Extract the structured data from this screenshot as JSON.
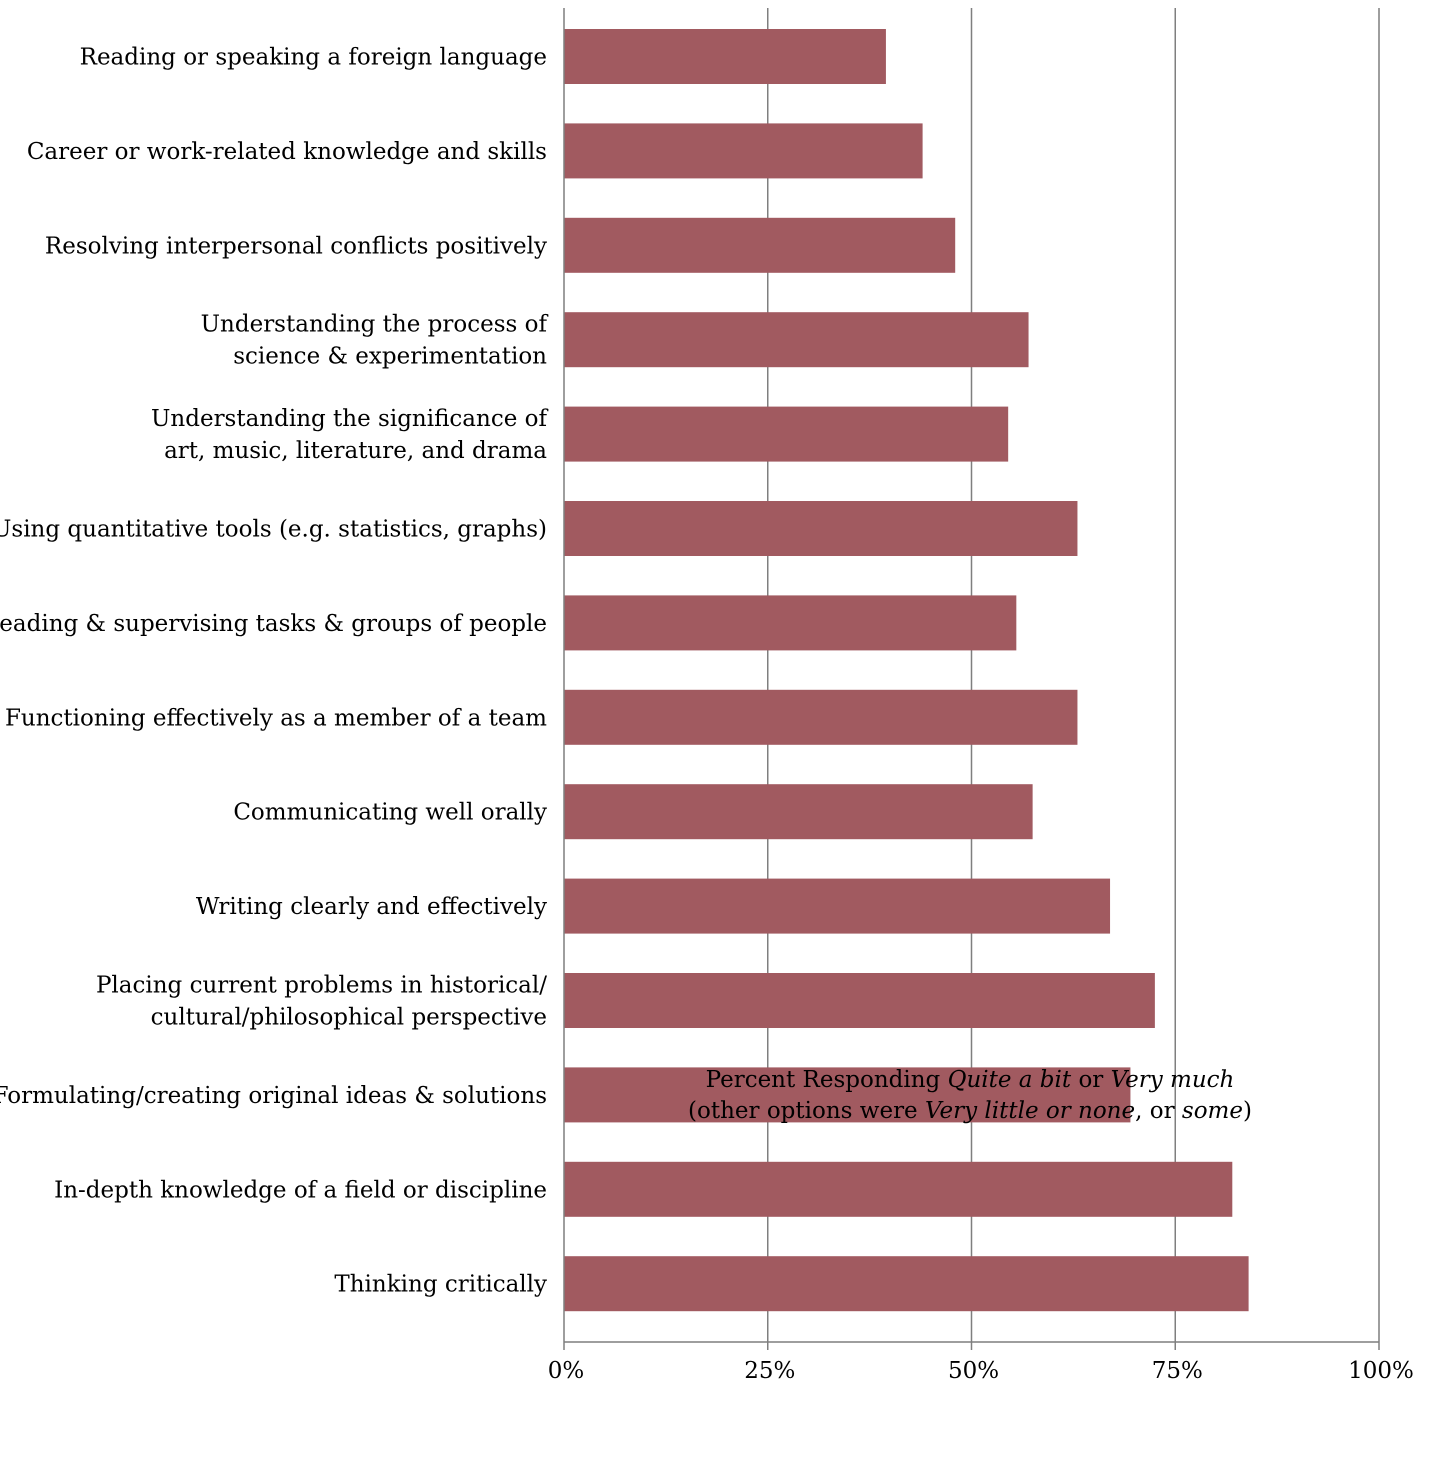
{
  "chart_data": {
    "type": "bar",
    "orientation": "horizontal",
    "categories": [
      [
        "Reading or speaking a foreign language"
      ],
      [
        "Career or work-related knowledge and skills"
      ],
      [
        "Resolving interpersonal conflicts positively"
      ],
      [
        "Understanding the process of",
        "science & experimentation"
      ],
      [
        "Understanding the significance of",
        "art, music, literature, and drama"
      ],
      [
        "Using quantitative tools (e.g. statistics, graphs)"
      ],
      [
        "Leading & supervising tasks & groups of people"
      ],
      [
        "Functioning effectively as a member of a team"
      ],
      [
        "Communicating well orally"
      ],
      [
        "Writing clearly and effectively"
      ],
      [
        "Placing current problems in historical/",
        "cultural/philosophical perspective"
      ],
      [
        "Formulating/creating original ideas & solutions"
      ],
      [
        "In-depth knowledge of a field or discipline"
      ],
      [
        "Thinking critically"
      ]
    ],
    "values": [
      39.5,
      44,
      48,
      57,
      54.5,
      63,
      55.5,
      63,
      57.5,
      67,
      72.5,
      69.5,
      82,
      84
    ],
    "xlim": [
      0,
      100
    ],
    "xticks": [
      0,
      25,
      50,
      75,
      100
    ],
    "xtick_labels": [
      "0%",
      "25%",
      "50%",
      "75%",
      "100%"
    ],
    "grid": true,
    "bar_color": "#a15a60",
    "xlabel_line1": [
      {
        "text": "Percent Responding ",
        "italic": false
      },
      {
        "text": "Quite a bit",
        "italic": true
      },
      {
        "text": " or ",
        "italic": false
      },
      {
        "text": "Very much",
        "italic": true
      }
    ],
    "xlabel_line2": [
      {
        "text": "(other options were ",
        "italic": false
      },
      {
        "text": "Very little or none",
        "italic": true
      },
      {
        "text": ", or ",
        "italic": false
      },
      {
        "text": "some",
        "italic": true
      },
      {
        "text": ")",
        "italic": false
      }
    ]
  }
}
